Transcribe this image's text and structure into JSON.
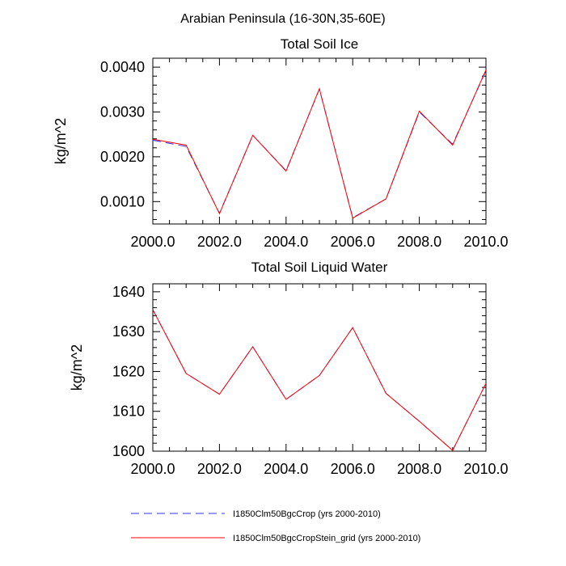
{
  "figure": {
    "suptitle": "Arabian Peninsula (16-30N,35-60E)"
  },
  "chart_data": [
    {
      "type": "line",
      "title": "Total Soil Ice",
      "ylabel": "kg/m^2",
      "xlabel": "",
      "xlim": [
        2000,
        2010
      ],
      "ylim": [
        0.0005,
        0.0042
      ],
      "x_ticks": [
        "2000.0",
        "2002.0",
        "2004.0",
        "2006.0",
        "2008.0",
        "2010.0"
      ],
      "y_ticks": [
        "0.0010",
        "0.0020",
        "0.0030",
        "0.0040"
      ],
      "x": [
        2000,
        2001,
        2002,
        2003,
        2004,
        2005,
        2006,
        2007,
        2008,
        2009,
        2010
      ],
      "series": [
        {
          "name": "I1850Clm50BgcCrop (yrs 2000-2010)",
          "color": "#3030ff",
          "style": "dashed",
          "values": [
            0.00237,
            0.00223,
            0.00074,
            0.00248,
            0.00169,
            0.00351,
            0.00064,
            0.00106,
            0.003,
            0.00228,
            0.00392
          ]
        },
        {
          "name": "I1850Clm50BgcCropStein_grid (yrs 2000-2010)",
          "color": "#ff0000",
          "style": "solid",
          "values": [
            0.00239,
            0.00226,
            0.00073,
            0.00248,
            0.00168,
            0.00352,
            0.00063,
            0.00106,
            0.00302,
            0.00226,
            0.00394
          ]
        }
      ]
    },
    {
      "type": "line",
      "title": "Total Soil Liquid Water",
      "ylabel": "kg/m^2",
      "xlabel": "",
      "xlim": [
        2000,
        2010
      ],
      "ylim": [
        1600,
        1642
      ],
      "x_ticks": [
        "2000.0",
        "2002.0",
        "2004.0",
        "2006.0",
        "2008.0",
        "2010.0"
      ],
      "y_ticks": [
        "1600",
        "1610",
        "1620",
        "1630",
        "1640"
      ],
      "x": [
        2000,
        2001,
        2002,
        2003,
        2004,
        2005,
        2006,
        2007,
        2008,
        2009,
        2010
      ],
      "series": [
        {
          "name": "I1850Clm50BgcCrop (yrs 2000-2010)",
          "color": "#3030ff",
          "style": "dashed",
          "values": [
            1635.5,
            1619.5,
            1614.3,
            1626.2,
            1613.0,
            1619.0,
            1631.0,
            1614.5,
            1607.5,
            1600.2,
            1617.0
          ]
        },
        {
          "name": "I1850Clm50BgcCropStein_grid (yrs 2000-2010)",
          "color": "#ff0000",
          "style": "solid",
          "values": [
            1635.5,
            1619.5,
            1614.3,
            1626.2,
            1613.0,
            1619.0,
            1631.0,
            1614.5,
            1607.5,
            1600.2,
            1617.0
          ]
        }
      ]
    }
  ],
  "legend": [
    {
      "label": "I1850Clm50BgcCrop (yrs 2000-2010)",
      "color": "#3030ff",
      "style": "dashed"
    },
    {
      "label": "I1850Clm50BgcCropStein_grid (yrs 2000-2010)",
      "color": "#ff0000",
      "style": "solid"
    }
  ]
}
